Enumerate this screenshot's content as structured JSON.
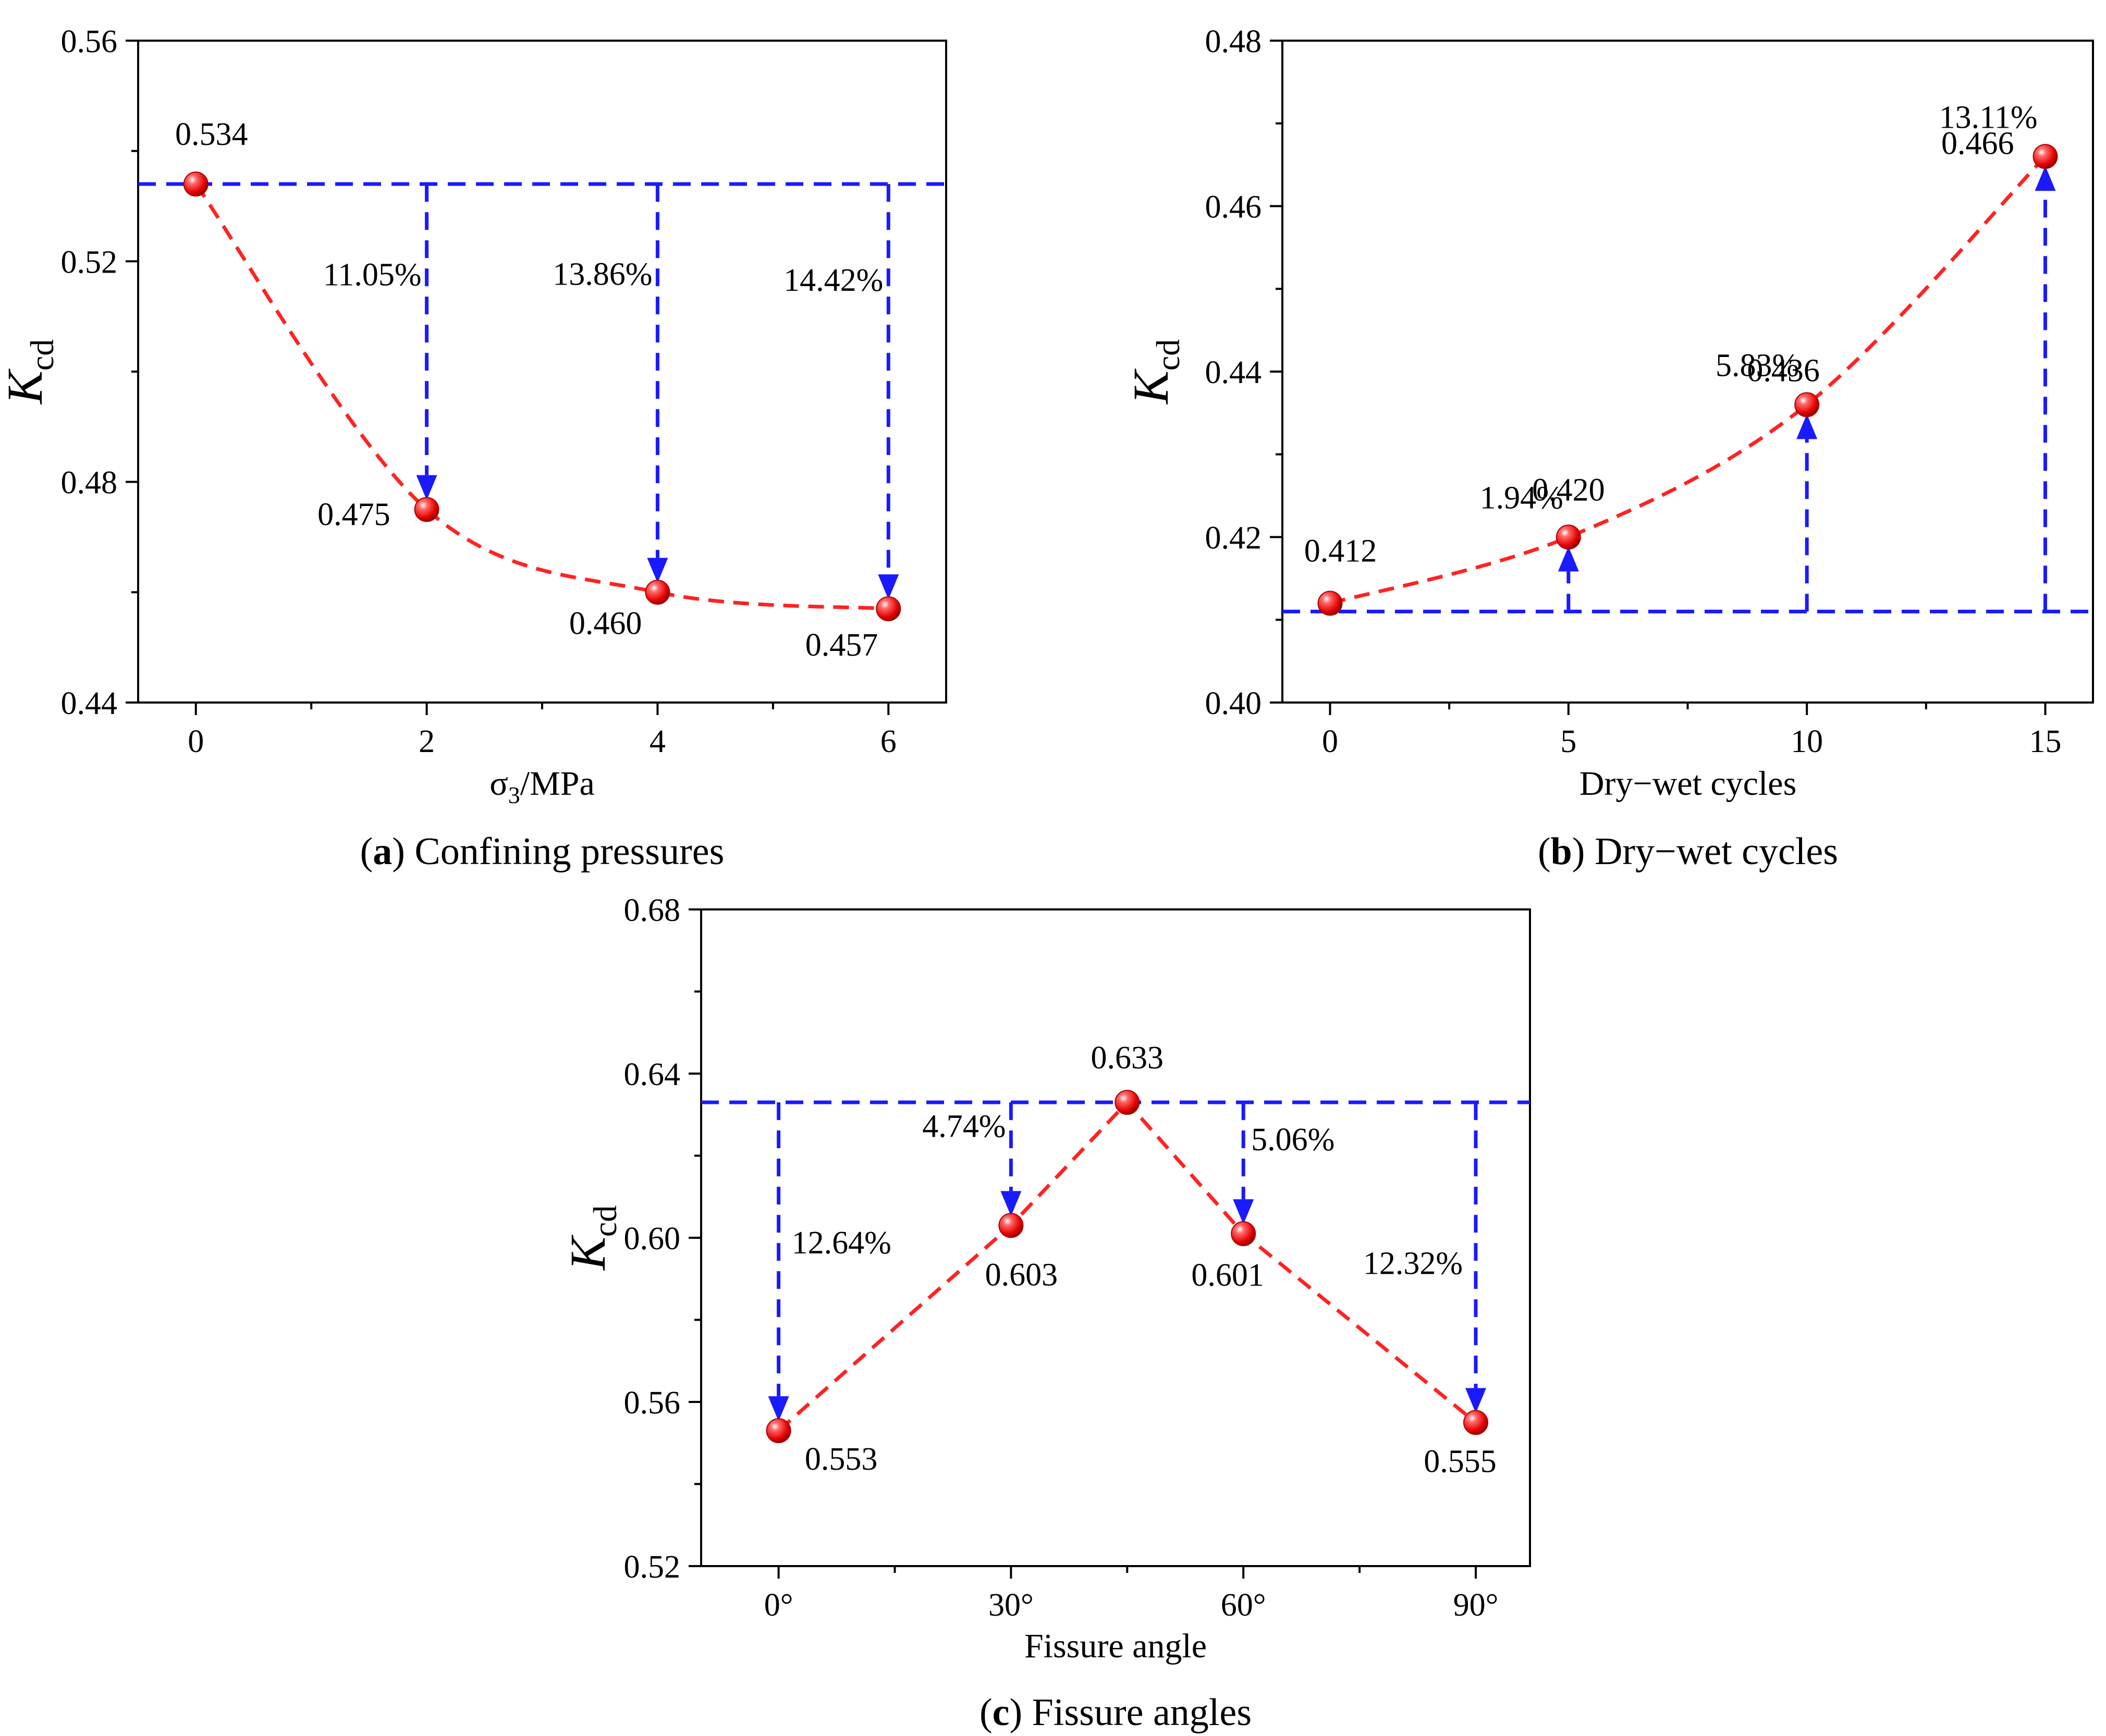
{
  "colors": {
    "marker": "#ff1a1a",
    "marker_highlight": "#ffffff",
    "trend_line": "#ff2222",
    "reference_line": "#1a1aff",
    "axis": "#000000",
    "text": "#000000"
  },
  "chart_data": [
    {
      "id": "a",
      "type": "scatter",
      "caption_letter": "a",
      "caption_text": ") Confining pressures",
      "caption_open": "(",
      "ylabel_main": "K",
      "ylabel_sub": "cd",
      "xlabel_main": "σ",
      "xlabel_sub": "3",
      "xlabel_tail": "/MPa",
      "xlim": [
        -0.5,
        6.5
      ],
      "ylim": [
        0.44,
        0.56
      ],
      "x_ticks": [
        0,
        2,
        4,
        6
      ],
      "x_tick_labels": [
        "0",
        "2",
        "4",
        "6"
      ],
      "x_minor_ticks": [
        1,
        3,
        5
      ],
      "y_ticks": [
        0.44,
        0.48,
        0.52,
        0.56
      ],
      "y_tick_labels": [
        "0.44",
        "0.48",
        "0.52",
        "0.56"
      ],
      "y_minor_ticks": [
        0.46,
        0.5,
        0.54
      ],
      "reference_value": 0.534,
      "arrow_direction": "down",
      "points": [
        {
          "x": 0,
          "y": 0.534,
          "label": "0.534"
        },
        {
          "x": 2,
          "y": 0.475,
          "label": "0.475",
          "change": "11.05%"
        },
        {
          "x": 4,
          "y": 0.46,
          "label": "0.460",
          "change": "13.86%"
        },
        {
          "x": 6,
          "y": 0.457,
          "label": "0.457",
          "change": "14.42%"
        }
      ]
    },
    {
      "id": "b",
      "type": "scatter",
      "caption_letter": "b",
      "caption_text": ") Dry−wet cycles",
      "caption_open": "(",
      "ylabel_main": "K",
      "ylabel_sub": "cd",
      "xlabel_main": "Dry−wet cycles",
      "xlabel_sub": "",
      "xlabel_tail": "",
      "xlim": [
        -1,
        16
      ],
      "ylim": [
        0.4,
        0.48
      ],
      "x_ticks": [
        0,
        5,
        10,
        15
      ],
      "x_tick_labels": [
        "0",
        "5",
        "10",
        "15"
      ],
      "x_minor_ticks": [
        2.5,
        7.5,
        12.5
      ],
      "y_ticks": [
        0.4,
        0.42,
        0.44,
        0.46,
        0.48
      ],
      "y_tick_labels": [
        "0.40",
        "0.42",
        "0.44",
        "0.46",
        "0.48"
      ],
      "y_minor_ticks": [
        0.41,
        0.43,
        0.45,
        0.47
      ],
      "reference_value": 0.411,
      "arrow_direction": "up",
      "points": [
        {
          "x": 0,
          "y": 0.412,
          "label": "0.412"
        },
        {
          "x": 5,
          "y": 0.42,
          "label": "0.420",
          "change": "1.94%"
        },
        {
          "x": 10,
          "y": 0.436,
          "label": "0.436",
          "change": "5.83%"
        },
        {
          "x": 15,
          "y": 0.466,
          "label": "0.466",
          "change": "13.11%"
        }
      ]
    },
    {
      "id": "c",
      "type": "scatter",
      "caption_letter": "c",
      "caption_text": ") Fissure angles",
      "caption_open": "(",
      "ylabel_main": "K",
      "ylabel_sub": "cd",
      "xlabel_main": "Fissure angle",
      "xlabel_sub": "",
      "xlabel_tail": "",
      "xlim": [
        -10,
        97
      ],
      "ylim": [
        0.52,
        0.68
      ],
      "x_ticks": [
        0,
        30,
        60,
        90
      ],
      "x_tick_labels": [
        "0°",
        "30°",
        "60°",
        "90°"
      ],
      "x_minor_ticks": [
        15,
        45,
        75
      ],
      "y_ticks": [
        0.52,
        0.56,
        0.6,
        0.64,
        0.68
      ],
      "y_tick_labels": [
        "0.52",
        "0.56",
        "0.60",
        "0.64",
        "0.68"
      ],
      "y_minor_ticks": [
        0.54,
        0.58,
        0.62,
        0.66
      ],
      "reference_value": 0.633,
      "arrow_direction": "down",
      "points": [
        {
          "x": 0,
          "y": 0.553,
          "label": "0.553",
          "change": "12.64%"
        },
        {
          "x": 30,
          "y": 0.603,
          "label": "0.603",
          "change": "4.74%"
        },
        {
          "x": 45,
          "y": 0.633,
          "label": "0.633"
        },
        {
          "x": 60,
          "y": 0.601,
          "label": "0.601",
          "change": "5.06%"
        },
        {
          "x": 90,
          "y": 0.555,
          "label": "0.555",
          "change": "12.32%"
        }
      ]
    }
  ]
}
